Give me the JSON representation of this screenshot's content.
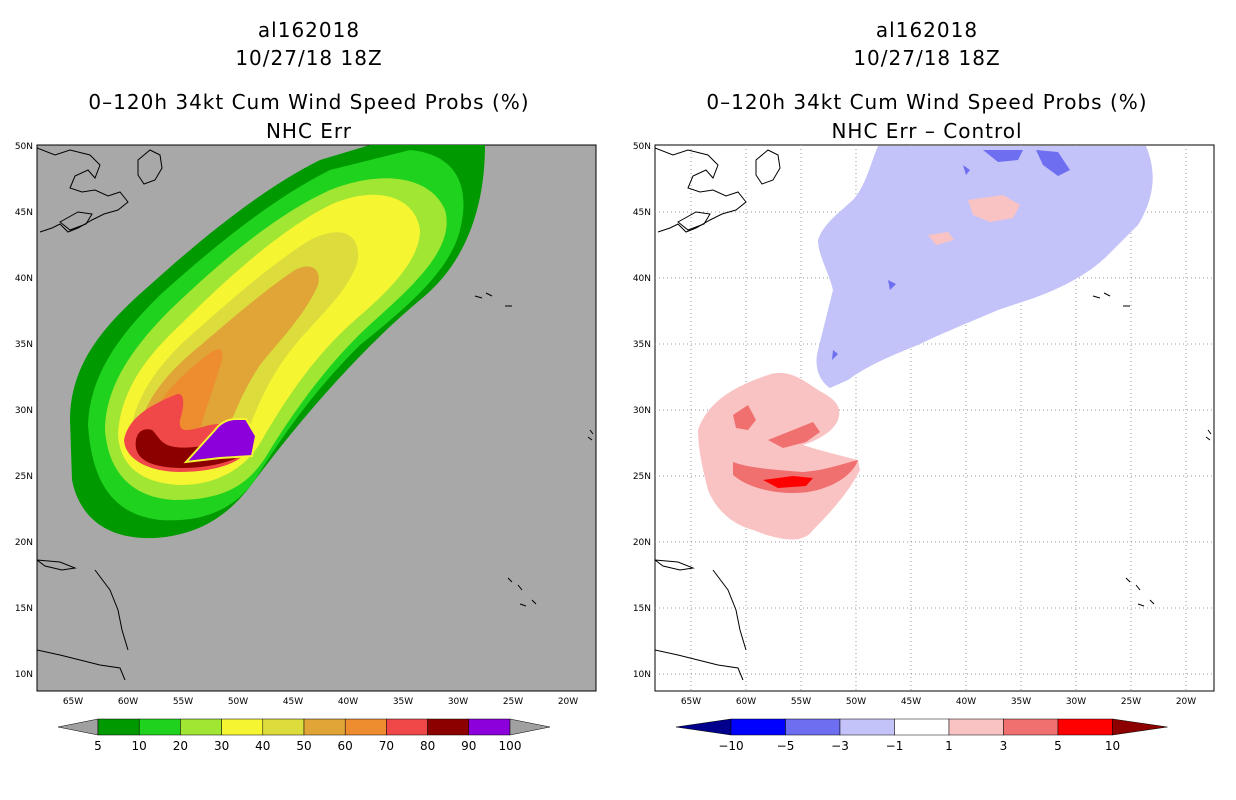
{
  "left": {
    "title": {
      "storm_id": "al162018",
      "date": "10/27/18 18Z",
      "product": "0–120h 34kt Cum Wind Speed Probs (%)",
      "variant": "NHC Err"
    },
    "colorbar": {
      "labels": [
        "5",
        "10",
        "20",
        "30",
        "40",
        "50",
        "60",
        "70",
        "80",
        "90",
        "100"
      ],
      "colors": [
        "#a0a0a0",
        "#009a00",
        "#1ed21e",
        "#a0e632",
        "#f5f532",
        "#dcdc3c",
        "#e0a536",
        "#ee8c30",
        "#f04848",
        "#8c0000",
        "#8c00dc",
        "#a0a0a0"
      ]
    }
  },
  "right": {
    "title": {
      "storm_id": "al162018",
      "date": "10/27/18 18Z",
      "product": "0–120h 34kt Cum Wind Speed Probs (%)",
      "variant": "NHC Err – Control"
    },
    "colorbar": {
      "labels": [
        "−10",
        "−5",
        "−3",
        "−1",
        "1",
        "3",
        "5",
        "10"
      ],
      "colors": [
        "#00008c",
        "#0000ff",
        "#6e6ef0",
        "#c3c3fa",
        "#ffffff",
        "#fac3c3",
        "#f07070",
        "#ff0000",
        "#8c0000"
      ]
    }
  },
  "lat_labels": [
    "50N",
    "45N",
    "40N",
    "35N",
    "30N",
    "25N",
    "20N",
    "15N",
    "10N"
  ],
  "lon_labels": [
    "65W",
    "60W",
    "55W",
    "50W",
    "45W",
    "40W",
    "35W",
    "30W",
    "25W",
    "20W"
  ],
  "colors": {
    "ocean_left": "#a8a8a8",
    "ocean_right": "#ffffff",
    "coast": "#000000",
    "grid": "#999999"
  }
}
